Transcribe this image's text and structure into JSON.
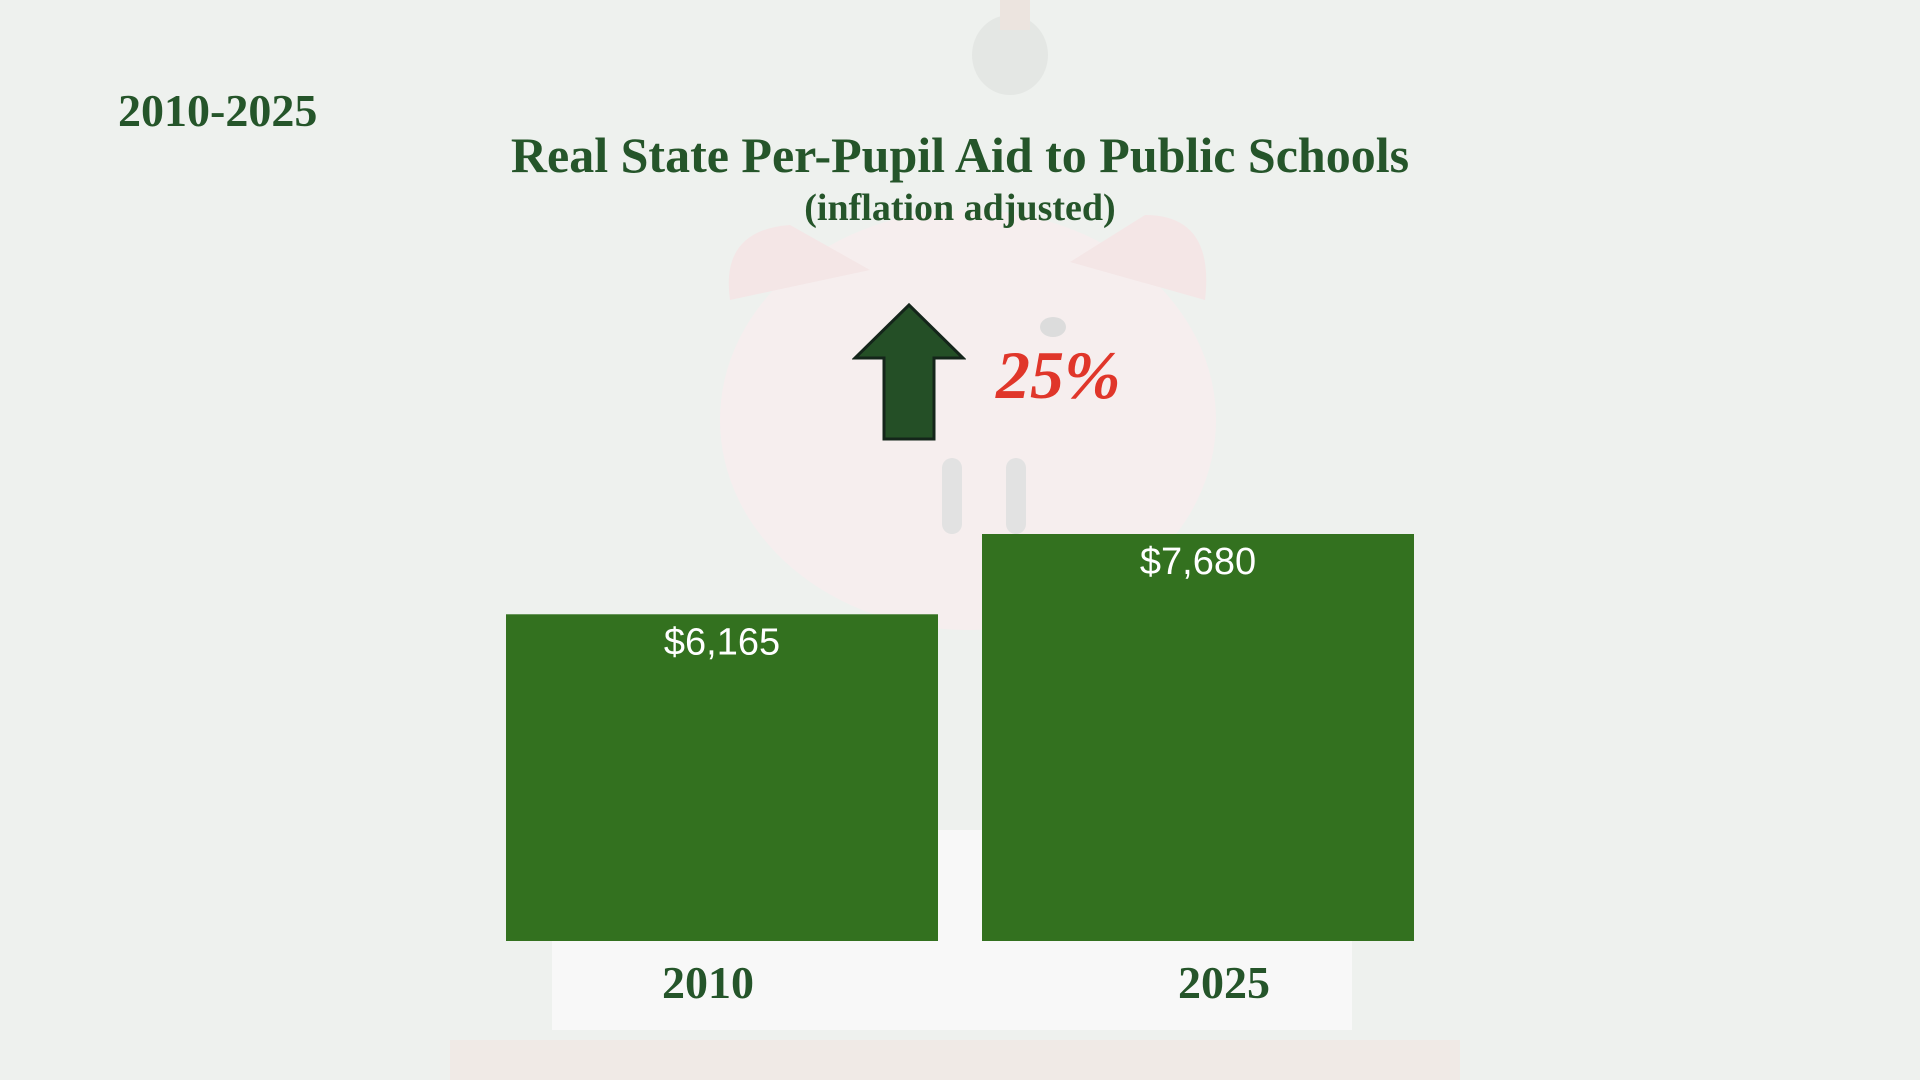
{
  "header": {
    "period": "2010-2025",
    "title": "Real State Per-Pupil Aid to Public Schools",
    "subtitle": "(inflation adjusted)"
  },
  "change": {
    "direction": "up",
    "label": "25%",
    "arrow_color": "#244f26",
    "label_color": "#e0362a"
  },
  "colors": {
    "bar": "#33711f",
    "text": "#25552a",
    "background": "#eef1ee"
  },
  "chart_data": {
    "type": "bar",
    "categories": [
      "2010",
      "2025"
    ],
    "values": [
      6165,
      7680
    ],
    "value_labels": [
      "$6,165",
      "$7,680"
    ],
    "title": "Real State Per-Pupil Aid to Public Schools",
    "subtitle": "(inflation adjusted)",
    "xlabel": "",
    "ylabel": "",
    "ylim": [
      0,
      7680
    ],
    "grid": false,
    "legend": "none"
  }
}
